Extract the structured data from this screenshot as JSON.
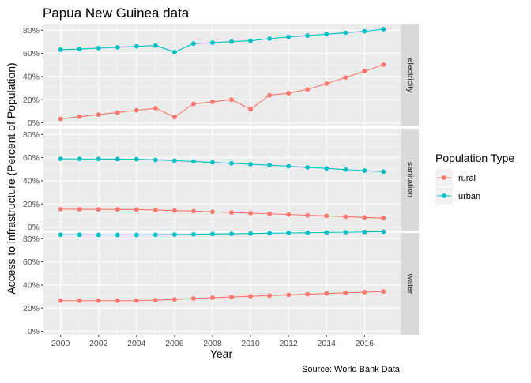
{
  "chart_data": {
    "type": "line",
    "title": "Papua New Guinea data",
    "xlabel": "Year",
    "ylabel": "Access to infrastructure (Percent of Population)",
    "caption": "Source: World Bank Data",
    "legend": {
      "title": "Population Type",
      "placement": "right",
      "entries": [
        "rural",
        "urban"
      ]
    },
    "colors": {
      "rural": "#F8766D",
      "urban": "#00BFC4"
    },
    "x": [
      2000,
      2001,
      2002,
      2003,
      2004,
      2005,
      2006,
      2007,
      2008,
      2009,
      2010,
      2011,
      2012,
      2013,
      2014,
      2015,
      2016,
      2017
    ],
    "x_ticks": [
      "2000",
      "2002",
      "2004",
      "2006",
      "2008",
      "2010",
      "2012",
      "2014",
      "2016"
    ],
    "y_ticks": [
      "0%",
      "20%",
      "40%",
      "60%",
      "80%"
    ],
    "ylim": [
      -3,
      85
    ],
    "xlim": [
      1999.1,
      2017.9
    ],
    "grid": true,
    "panels": [
      {
        "strip": "electricity",
        "series": [
          {
            "name": "rural",
            "values": [
              3.5,
              5.3,
              7.2,
              9.0,
              10.9,
              12.7,
              5.0,
              16.4,
              18.2,
              20.1,
              11.8,
              23.9,
              25.6,
              28.9,
              33.9,
              39.2,
              44.6,
              50.3
            ]
          },
          {
            "name": "urban",
            "values": [
              63.2,
              63.8,
              64.6,
              65.3,
              66.1,
              66.8,
              61.2,
              68.5,
              69.3,
              70.2,
              71.0,
              72.8,
              74.2,
              75.4,
              76.6,
              77.9,
              79.1,
              80.9
            ]
          }
        ]
      },
      {
        "strip": "sanitation",
        "series": [
          {
            "name": "rural",
            "values": [
              15.5,
              15.4,
              15.3,
              15.3,
              15.2,
              14.8,
              14.3,
              13.8,
              13.2,
              12.6,
              12.0,
              11.5,
              10.9,
              10.2,
              9.7,
              9.0,
              8.4,
              7.8
            ]
          },
          {
            "name": "urban",
            "values": [
              59.0,
              58.9,
              58.9,
              58.8,
              58.7,
              58.1,
              57.4,
              56.7,
              55.9,
              55.1,
              54.3,
              53.5,
              52.6,
              51.6,
              50.7,
              49.7,
              48.8,
              47.9
            ]
          }
        ]
      },
      {
        "strip": "water",
        "series": [
          {
            "name": "rural",
            "values": [
              26.5,
              26.5,
              26.5,
              26.5,
              26.5,
              27.0,
              27.6,
              28.4,
              29.1,
              29.7,
              30.3,
              30.9,
              31.5,
              32.1,
              32.7,
              33.3,
              33.8,
              34.4
            ]
          },
          {
            "name": "urban",
            "values": [
              83.4,
              83.4,
              83.3,
              83.3,
              83.3,
              83.4,
              83.6,
              83.8,
              84.1,
              84.3,
              84.5,
              84.8,
              85.0,
              85.2,
              85.5,
              85.6,
              85.8,
              86.1
            ]
          }
        ]
      }
    ]
  }
}
